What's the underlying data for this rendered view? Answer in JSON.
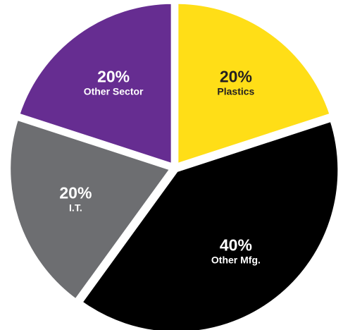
{
  "chart_data": {
    "type": "pie",
    "slices": [
      {
        "label": "Plastics",
        "value": 20,
        "display": "20%",
        "color": "#ffde17",
        "text_color": "#231f20"
      },
      {
        "label": "Other Mfg.",
        "value": 40,
        "display": "40%",
        "color": "#000000",
        "text_color": "#ffffff"
      },
      {
        "label": "I.T.",
        "value": 20,
        "display": "20%",
        "color": "#6d6e71",
        "text_color": "#ffffff"
      },
      {
        "label": "Other Sector",
        "value": 20,
        "display": "20%",
        "color": "#662d91",
        "text_color": "#ffffff"
      }
    ],
    "start_angle_deg": 0,
    "direction": "clockwise",
    "separator_color": "#ffffff",
    "legend": "none",
    "grid": false
  }
}
